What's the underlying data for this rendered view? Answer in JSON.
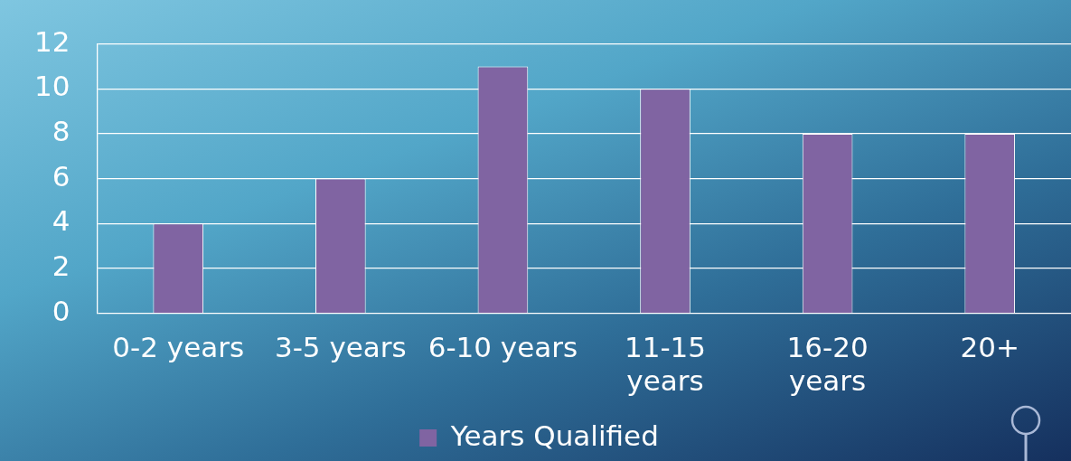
{
  "chart_data": {
    "type": "bar",
    "categories": [
      "0-2 years",
      "3-5 years",
      "6-10 years",
      "11-15 years",
      "16-20 years",
      "20+"
    ],
    "series": [
      {
        "name": "Years Qualified",
        "color": "#8064a2",
        "values": [
          4,
          6,
          11,
          10,
          8,
          8
        ]
      }
    ],
    "ylim": [
      0,
      12
    ],
    "yticks": [
      0,
      2,
      4,
      6,
      8,
      10,
      12
    ],
    "grid": "y",
    "legend": "bottom"
  }
}
